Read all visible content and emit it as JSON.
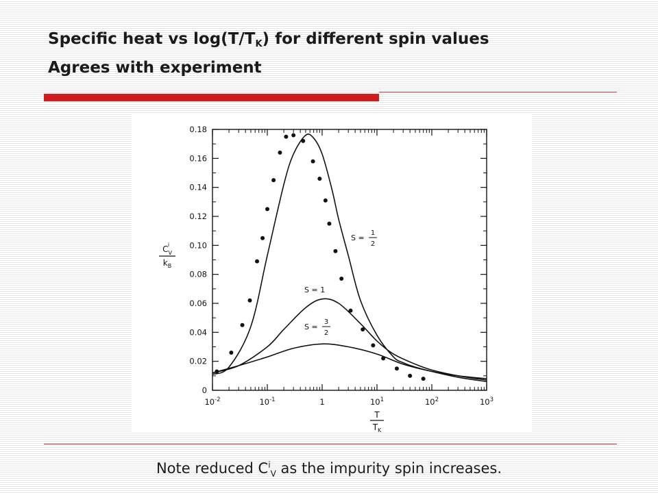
{
  "title": {
    "line1_prefix": "Specific heat vs log(T/T",
    "line1_sub": "K",
    "line1_suffix": ") for different spin values",
    "line2": "Agrees with experiment"
  },
  "note": {
    "prefix": "Note reduced C",
    "sup": "i",
    "sub": "V",
    "suffix": " as the impurity spin increases."
  },
  "colors": {
    "accent_red": "#d31d1d",
    "ink": "#111111"
  },
  "chart_data": {
    "type": "line",
    "x_scale": "log",
    "xlim": [
      0.01,
      1000
    ],
    "ylim": [
      0,
      0.18
    ],
    "x_ticks": [
      {
        "value": 0.01,
        "base": "10",
        "exp": "-2"
      },
      {
        "value": 0.1,
        "base": "10",
        "exp": "-1"
      },
      {
        "value": 1,
        "base": "1",
        "exp": ""
      },
      {
        "value": 10,
        "base": "10",
        "exp": "1"
      },
      {
        "value": 100,
        "base": "10",
        "exp": "2"
      },
      {
        "value": 1000,
        "base": "10",
        "exp": "3"
      }
    ],
    "y_ticks": [
      "0",
      "0.02",
      "0.04",
      "0.06",
      "0.08",
      "0.10",
      "0.12",
      "0.14",
      "0.16",
      "0.18"
    ],
    "ylabel": {
      "top": "C",
      "top_sup": "i",
      "top_sub": "V",
      "bottom": "k",
      "bottom_sub": "B"
    },
    "xlabel": {
      "top": "T",
      "bottom": "T",
      "bottom_sub": "K"
    },
    "series": [
      {
        "name": "S = 1/2",
        "x": [
          0.01,
          0.02,
          0.05,
          0.1,
          0.2,
          0.3,
          0.5,
          0.7,
          1,
          1.5,
          2,
          3,
          5,
          10,
          20,
          30,
          50,
          100,
          300,
          1000
        ],
        "y": [
          0.011,
          0.016,
          0.044,
          0.093,
          0.142,
          0.163,
          0.176,
          0.174,
          0.163,
          0.139,
          0.118,
          0.093,
          0.062,
          0.038,
          0.023,
          0.019,
          0.016,
          0.013,
          0.009,
          0.006
        ]
      },
      {
        "name": "S = 1",
        "x": [
          0.01,
          0.03,
          0.1,
          0.2,
          0.5,
          1,
          2,
          5,
          10,
          20,
          50,
          100,
          300,
          1000
        ],
        "y": [
          0.012,
          0.017,
          0.03,
          0.042,
          0.057,
          0.063,
          0.06,
          0.046,
          0.034,
          0.025,
          0.018,
          0.014,
          0.01,
          0.007
        ]
      },
      {
        "name": "S = 3/2",
        "x": [
          0.01,
          0.03,
          0.1,
          0.3,
          1,
          3,
          10,
          30,
          100,
          300,
          1000
        ],
        "y": [
          0.012,
          0.017,
          0.023,
          0.029,
          0.032,
          0.03,
          0.025,
          0.018,
          0.013,
          0.01,
          0.008
        ]
      }
    ],
    "experimental_points": {
      "x": [
        0.012,
        0.022,
        0.035,
        0.048,
        0.065,
        0.082,
        0.1,
        0.13,
        0.17,
        0.22,
        0.3,
        0.45,
        0.68,
        0.9,
        1.15,
        1.35,
        1.75,
        2.25,
        3.3,
        5.5,
        8.5,
        13,
        23,
        40,
        70
      ],
      "y": [
        0.013,
        0.026,
        0.045,
        0.062,
        0.089,
        0.105,
        0.125,
        0.145,
        0.164,
        0.175,
        0.176,
        0.172,
        0.158,
        0.146,
        0.131,
        0.115,
        0.096,
        0.077,
        0.055,
        0.042,
        0.031,
        0.022,
        0.015,
        0.01,
        0.008
      ]
    },
    "curve_labels": [
      {
        "series": "S = 1/2",
        "prefix": "S =",
        "num": "1",
        "den": "2"
      },
      {
        "series": "S = 1",
        "text": "S = 1"
      },
      {
        "series": "S = 3/2",
        "prefix": "S =",
        "num": "3",
        "den": "2"
      }
    ]
  }
}
